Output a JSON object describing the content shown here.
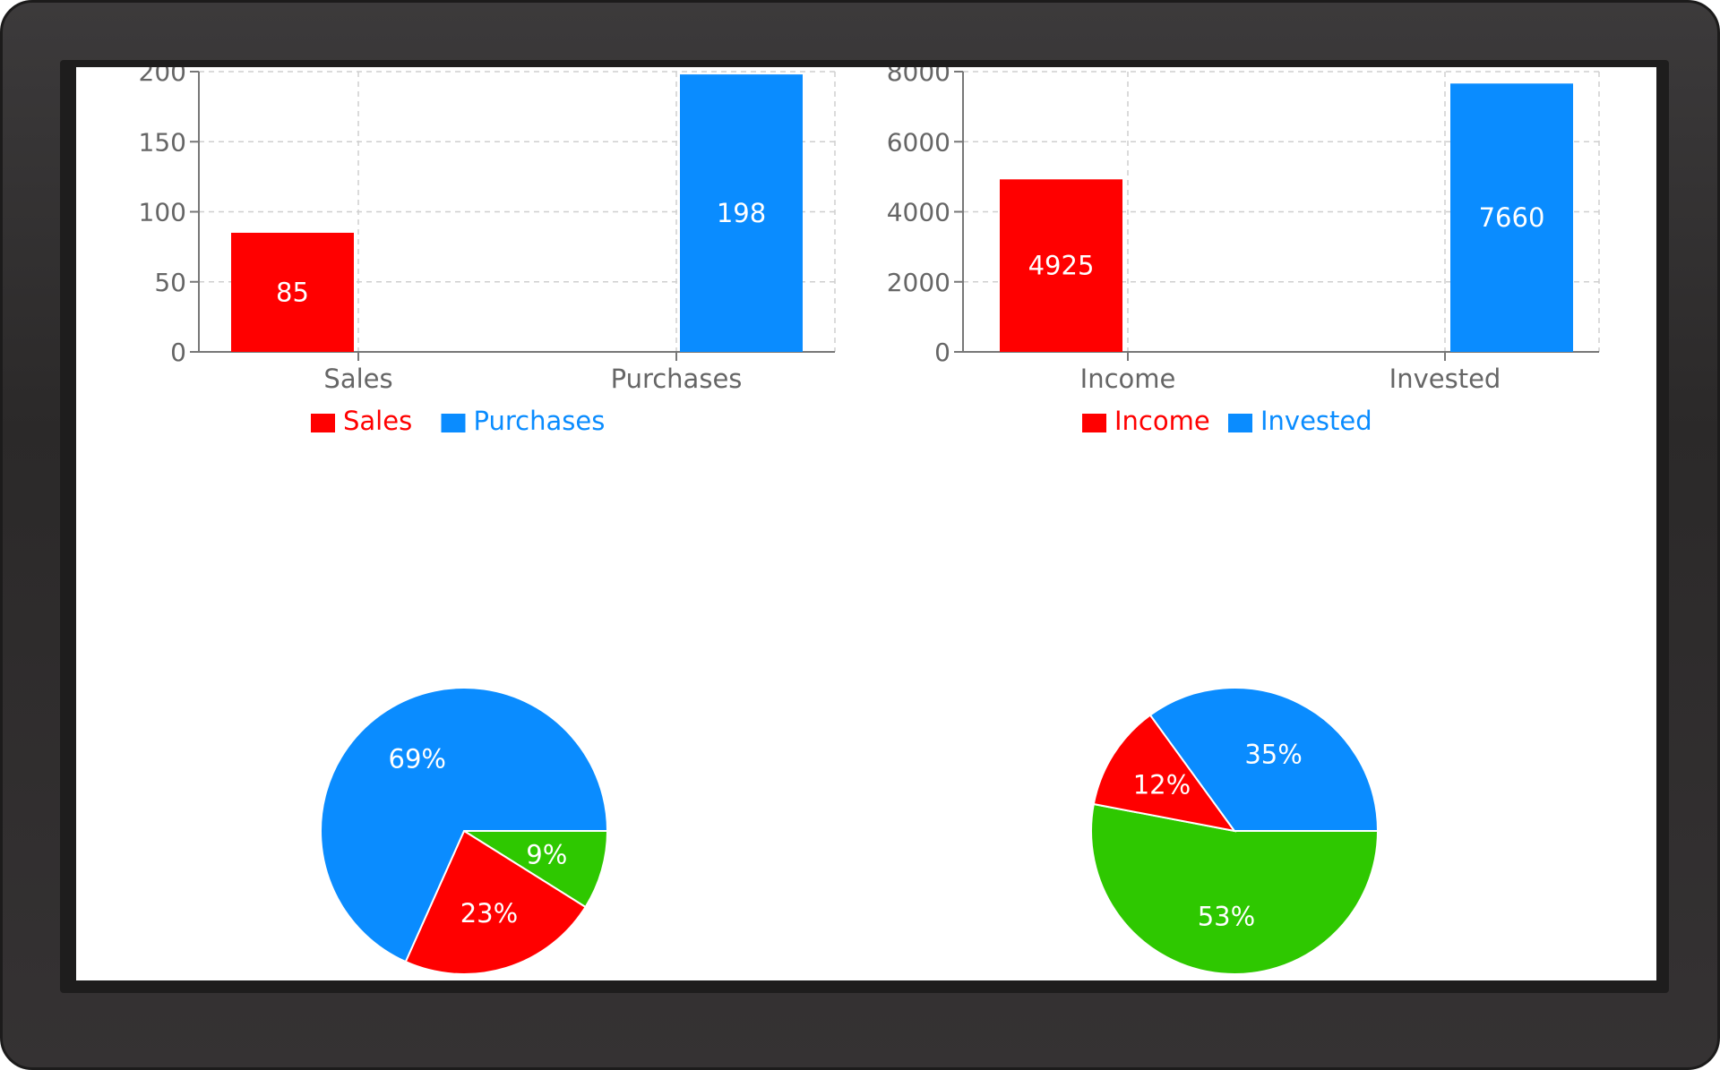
{
  "chart_data": [
    {
      "type": "bar",
      "categories": [
        "Sales",
        "Purchases"
      ],
      "series": [
        {
          "name": "Sales",
          "values": [
            85,
            null
          ],
          "color": "#ff0000"
        },
        {
          "name": "Purchases",
          "values": [
            null,
            198
          ],
          "color": "#0a8cff"
        }
      ],
      "yticks": [
        "0",
        "50",
        "100",
        "150",
        "200"
      ],
      "ylim": [
        0,
        200
      ],
      "grid": true,
      "legend": "bottom"
    },
    {
      "type": "bar",
      "categories": [
        "Income",
        "Invested"
      ],
      "series": [
        {
          "name": "Income",
          "values": [
            4925,
            null
          ],
          "color": "#ff0000"
        },
        {
          "name": "Invested",
          "values": [
            null,
            7660
          ],
          "color": "#0a8cff"
        }
      ],
      "yticks": [
        "0",
        "2000",
        "4000",
        "6000",
        "8000"
      ],
      "ylim": [
        0,
        8000
      ],
      "grid": true,
      "legend": "bottom"
    },
    {
      "type": "pie",
      "slices": [
        {
          "label": "9%",
          "value": 9,
          "color": "#2ec800"
        },
        {
          "label": "23%",
          "value": 23,
          "color": "#ff0000"
        },
        {
          "label": "69%",
          "value": 69,
          "color": "#0a8cff"
        }
      ],
      "start_angle_deg": 0
    },
    {
      "type": "pie",
      "slices": [
        {
          "label": "53%",
          "value": 53,
          "color": "#2ec800"
        },
        {
          "label": "12%",
          "value": 12,
          "color": "#ff0000"
        },
        {
          "label": "35%",
          "value": 35,
          "color": "#0a8cff"
        }
      ],
      "start_angle_deg": 0
    }
  ]
}
